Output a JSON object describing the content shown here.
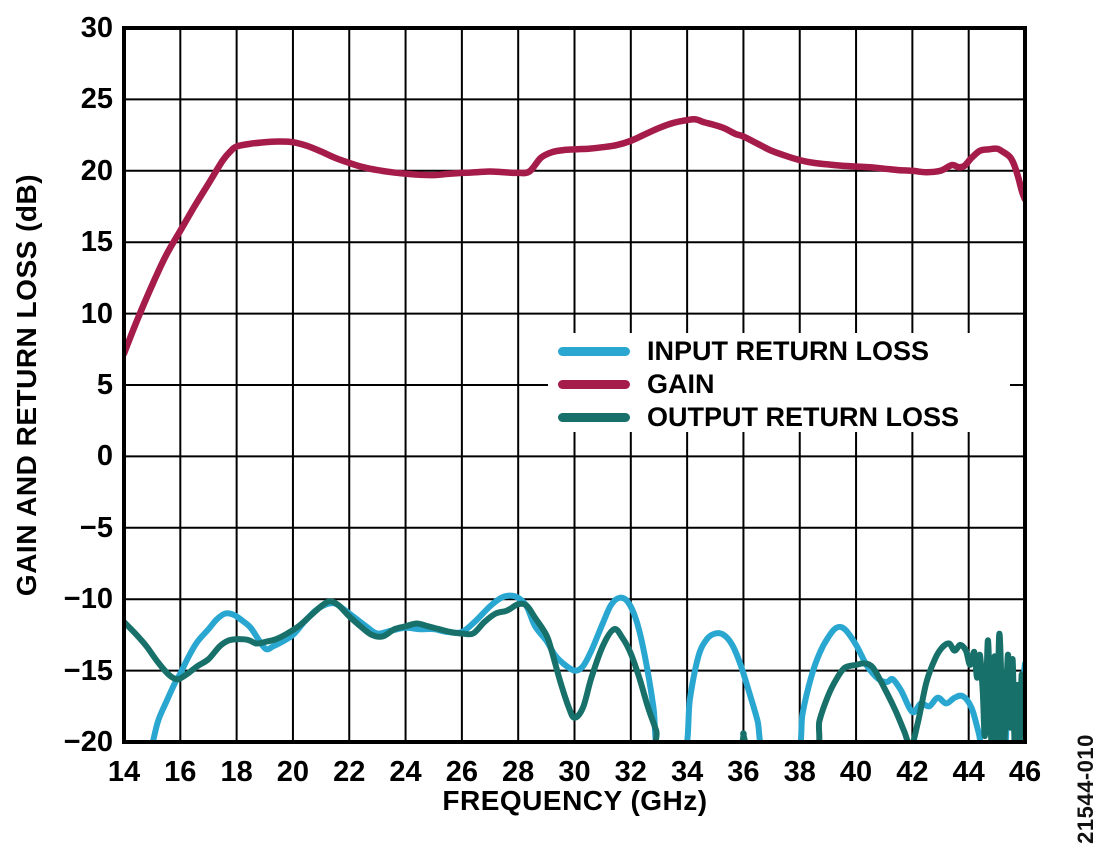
{
  "watermark_label": "21544-010",
  "chart_data": {
    "type": "line",
    "title": "",
    "xlabel": "FREQUENCY (GHz)",
    "ylabel": "GAIN AND RETURN LOSS (dB)",
    "xlim": [
      14,
      46
    ],
    "ylim": [
      -20,
      30
    ],
    "xticks": [
      14,
      16,
      18,
      20,
      22,
      24,
      26,
      28,
      30,
      32,
      34,
      36,
      38,
      40,
      42,
      44,
      46
    ],
    "yticks": [
      30,
      25,
      20,
      15,
      10,
      5,
      0,
      -5,
      -10,
      -15,
      -20
    ],
    "grid": true,
    "grid_color": "#000000",
    "legend": {
      "position": "center-right",
      "items": [
        "INPUT RETURN LOSS",
        "GAIN",
        "OUTPUT RETURN LOSS"
      ]
    },
    "series": [
      {
        "name": "INPUT RETURN LOSS",
        "color": "#2AA7D0",
        "points": [
          [
            14.95,
            -20.7
          ],
          [
            15.2,
            -18.6
          ],
          [
            15.5,
            -17.2
          ],
          [
            15.8,
            -15.9
          ],
          [
            16,
            -15.2
          ],
          [
            16.3,
            -14.0
          ],
          [
            16.6,
            -13.0
          ],
          [
            17,
            -12.1
          ],
          [
            17.3,
            -11.4
          ],
          [
            17.6,
            -11.0
          ],
          [
            17.9,
            -11.1
          ],
          [
            18.2,
            -11.5
          ],
          [
            18.5,
            -12.0
          ],
          [
            18.8,
            -12.9
          ],
          [
            19.05,
            -13.5
          ],
          [
            19.3,
            -13.3
          ],
          [
            19.6,
            -13.0
          ],
          [
            20,
            -12.5
          ],
          [
            20.4,
            -11.6
          ],
          [
            20.8,
            -10.8
          ],
          [
            21.2,
            -10.35
          ],
          [
            21.5,
            -10.3
          ],
          [
            21.8,
            -10.7
          ],
          [
            22.2,
            -11.3
          ],
          [
            22.6,
            -11.9
          ],
          [
            23,
            -12.4
          ],
          [
            23.5,
            -12.2
          ],
          [
            24,
            -12.0
          ],
          [
            24.5,
            -12.1
          ],
          [
            25,
            -12.1
          ],
          [
            25.5,
            -12.3
          ],
          [
            26,
            -12.3
          ],
          [
            26.5,
            -11.5
          ],
          [
            27,
            -10.5
          ],
          [
            27.4,
            -9.9
          ],
          [
            27.7,
            -9.75
          ],
          [
            28,
            -9.9
          ],
          [
            28.3,
            -10.5
          ],
          [
            28.6,
            -11.9
          ],
          [
            29,
            -12.9
          ],
          [
            29.3,
            -13.9
          ],
          [
            29.6,
            -14.5
          ],
          [
            30,
            -15.0
          ],
          [
            30.3,
            -14.7
          ],
          [
            30.6,
            -13.6
          ],
          [
            31,
            -11.7
          ],
          [
            31.3,
            -10.4
          ],
          [
            31.6,
            -9.9
          ],
          [
            31.9,
            -10.2
          ],
          [
            32.2,
            -11.5
          ],
          [
            32.5,
            -14.0
          ],
          [
            32.8,
            -17.5
          ],
          [
            33,
            -20.7
          ],
          [
            33.9,
            -20.7
          ],
          [
            34.1,
            -17.0
          ],
          [
            34.4,
            -14.0
          ],
          [
            34.7,
            -12.8
          ],
          [
            35,
            -12.4
          ],
          [
            35.3,
            -12.5
          ],
          [
            35.6,
            -13.2
          ],
          [
            35.9,
            -14.6
          ],
          [
            36.2,
            -16.5
          ],
          [
            36.5,
            -18.5
          ],
          [
            36.75,
            -20.7
          ],
          [
            37.9,
            -20.7
          ],
          [
            38.1,
            -18.0
          ],
          [
            38.4,
            -15.5
          ],
          [
            38.7,
            -13.8
          ],
          [
            39,
            -12.7
          ],
          [
            39.3,
            -12.0
          ],
          [
            39.6,
            -12.1
          ],
          [
            40,
            -13.2
          ],
          [
            40.4,
            -14.7
          ],
          [
            40.8,
            -15.6
          ],
          [
            41.1,
            -15.8
          ],
          [
            41.3,
            -15.6
          ],
          [
            41.6,
            -16.4
          ],
          [
            42,
            -17.9
          ],
          [
            42.3,
            -17.3
          ],
          [
            42.6,
            -17.5
          ],
          [
            42.9,
            -16.9
          ],
          [
            43.2,
            -17.3
          ],
          [
            43.5,
            -16.9
          ],
          [
            43.8,
            -16.8
          ],
          [
            44.1,
            -17.6
          ],
          [
            44.35,
            -19.3
          ],
          [
            44.55,
            -20.7
          ],
          [
            45.25,
            -20.7
          ],
          [
            45.35,
            -17.3
          ],
          [
            45.5,
            -16.9
          ],
          [
            45.65,
            -18.0
          ],
          [
            45.8,
            -18.6
          ],
          [
            45.9,
            -16.3
          ],
          [
            46,
            -14.5
          ]
        ]
      },
      {
        "name": "GAIN",
        "color": "#A51C4B",
        "points": [
          [
            14,
            7.2
          ],
          [
            14.5,
            9.7
          ],
          [
            15,
            12.0
          ],
          [
            15.5,
            14.1
          ],
          [
            16,
            15.8
          ],
          [
            16.5,
            17.5
          ],
          [
            17,
            19.1
          ],
          [
            17.5,
            20.7
          ],
          [
            17.8,
            21.4
          ],
          [
            18,
            21.7
          ],
          [
            18.5,
            21.9
          ],
          [
            19,
            22.0
          ],
          [
            19.5,
            22.05
          ],
          [
            20,
            22.0
          ],
          [
            20.5,
            21.75
          ],
          [
            21,
            21.35
          ],
          [
            21.5,
            20.9
          ],
          [
            22,
            20.55
          ],
          [
            22.5,
            20.25
          ],
          [
            23,
            20.05
          ],
          [
            23.5,
            19.9
          ],
          [
            24,
            19.8
          ],
          [
            24.5,
            19.72
          ],
          [
            25,
            19.7
          ],
          [
            25.5,
            19.78
          ],
          [
            26,
            19.85
          ],
          [
            26.5,
            19.9
          ],
          [
            27,
            19.95
          ],
          [
            27.5,
            19.9
          ],
          [
            28,
            19.85
          ],
          [
            28.4,
            19.95
          ],
          [
            28.8,
            20.9
          ],
          [
            29.2,
            21.3
          ],
          [
            29.6,
            21.45
          ],
          [
            30,
            21.5
          ],
          [
            30.5,
            21.55
          ],
          [
            31,
            21.65
          ],
          [
            31.5,
            21.8
          ],
          [
            32,
            22.1
          ],
          [
            32.5,
            22.55
          ],
          [
            33,
            23.0
          ],
          [
            33.5,
            23.35
          ],
          [
            34,
            23.55
          ],
          [
            34.3,
            23.6
          ],
          [
            34.6,
            23.4
          ],
          [
            34.9,
            23.25
          ],
          [
            35.3,
            23.0
          ],
          [
            35.7,
            22.6
          ],
          [
            36,
            22.4
          ],
          [
            36.5,
            21.9
          ],
          [
            37,
            21.4
          ],
          [
            37.5,
            21.05
          ],
          [
            38,
            20.75
          ],
          [
            38.5,
            20.55
          ],
          [
            39,
            20.45
          ],
          [
            39.5,
            20.35
          ],
          [
            40,
            20.3
          ],
          [
            40.5,
            20.25
          ],
          [
            41,
            20.15
          ],
          [
            41.5,
            20.05
          ],
          [
            42,
            20.0
          ],
          [
            42.5,
            19.9
          ],
          [
            43,
            20.0
          ],
          [
            43.4,
            20.4
          ],
          [
            43.65,
            20.25
          ],
          [
            43.85,
            20.35
          ],
          [
            44.1,
            20.9
          ],
          [
            44.4,
            21.4
          ],
          [
            44.7,
            21.5
          ],
          [
            45,
            21.55
          ],
          [
            45.2,
            21.35
          ],
          [
            45.45,
            21.0
          ],
          [
            45.6,
            20.5
          ],
          [
            45.75,
            19.6
          ],
          [
            45.9,
            18.5
          ],
          [
            46,
            18.0
          ]
        ]
      },
      {
        "name": "OUTPUT RETURN LOSS",
        "color": "#177069",
        "points": [
          [
            14,
            -11.6
          ],
          [
            14.4,
            -12.4
          ],
          [
            14.8,
            -13.3
          ],
          [
            15.2,
            -14.4
          ],
          [
            15.6,
            -15.3
          ],
          [
            15.9,
            -15.6
          ],
          [
            16.2,
            -15.3
          ],
          [
            16.6,
            -14.7
          ],
          [
            17,
            -14.2
          ],
          [
            17.4,
            -13.3
          ],
          [
            17.7,
            -12.9
          ],
          [
            18,
            -12.8
          ],
          [
            18.4,
            -12.85
          ],
          [
            18.7,
            -13.1
          ],
          [
            19,
            -13.0
          ],
          [
            19.4,
            -12.8
          ],
          [
            19.8,
            -12.4
          ],
          [
            20.2,
            -11.9
          ],
          [
            20.6,
            -11.2
          ],
          [
            21,
            -10.5
          ],
          [
            21.3,
            -10.15
          ],
          [
            21.6,
            -10.4
          ],
          [
            22,
            -11.2
          ],
          [
            22.4,
            -11.9
          ],
          [
            22.8,
            -12.5
          ],
          [
            23.2,
            -12.6
          ],
          [
            23.6,
            -12.1
          ],
          [
            24,
            -11.9
          ],
          [
            24.4,
            -11.7
          ],
          [
            24.8,
            -11.9
          ],
          [
            25.2,
            -12.1
          ],
          [
            25.6,
            -12.3
          ],
          [
            26,
            -12.4
          ],
          [
            26.4,
            -12.4
          ],
          [
            26.8,
            -11.6
          ],
          [
            27.2,
            -11.0
          ],
          [
            27.6,
            -10.8
          ],
          [
            28,
            -10.35
          ],
          [
            28.3,
            -10.45
          ],
          [
            28.6,
            -11.3
          ],
          [
            29,
            -12.5
          ],
          [
            29.2,
            -13.7
          ],
          [
            29.5,
            -15.8
          ],
          [
            29.8,
            -17.6
          ],
          [
            30,
            -18.3
          ],
          [
            30.3,
            -17.6
          ],
          [
            30.6,
            -15.5
          ],
          [
            31,
            -13.3
          ],
          [
            31.4,
            -12.1
          ],
          [
            31.7,
            -12.7
          ],
          [
            32,
            -13.8
          ],
          [
            32.3,
            -15.5
          ],
          [
            32.6,
            -17.5
          ],
          [
            32.9,
            -19.2
          ],
          [
            33.15,
            -20.7
          ],
          [
            35.8,
            -20.7
          ],
          [
            36,
            -19.4
          ],
          [
            36.2,
            -20.7
          ],
          [
            38.45,
            -20.7
          ],
          [
            38.7,
            -18.5
          ],
          [
            39,
            -16.8
          ],
          [
            39.3,
            -15.6
          ],
          [
            39.6,
            -14.8
          ],
          [
            40,
            -14.6
          ],
          [
            40.3,
            -14.5
          ],
          [
            40.6,
            -14.8
          ],
          [
            41,
            -16.2
          ],
          [
            41.4,
            -17.8
          ],
          [
            41.7,
            -19.2
          ],
          [
            41.95,
            -20.3
          ],
          [
            42.2,
            -18.6
          ],
          [
            42.5,
            -15.8
          ],
          [
            42.8,
            -14.2
          ],
          [
            43.05,
            -13.4
          ],
          [
            43.3,
            -13.1
          ],
          [
            43.5,
            -13.6
          ],
          [
            43.7,
            -13.2
          ],
          [
            43.9,
            -13.6
          ],
          [
            44.05,
            -14.6
          ],
          [
            44.2,
            -13.7
          ],
          [
            44.3,
            -15.5
          ],
          [
            44.4,
            -13.9
          ],
          [
            44.5,
            -16.5
          ],
          [
            44.58,
            -19.5
          ],
          [
            44.68,
            -12.9
          ],
          [
            44.76,
            -17.5
          ],
          [
            44.84,
            -20.7
          ],
          [
            44.92,
            -14.0
          ],
          [
            45,
            -20.7
          ],
          [
            45.08,
            -12.6
          ],
          [
            45.16,
            -15.5
          ],
          [
            45.24,
            -20.7
          ],
          [
            45.32,
            -17.5
          ],
          [
            45.4,
            -13.9
          ],
          [
            45.48,
            -19.0
          ],
          [
            45.56,
            -14.2
          ],
          [
            45.64,
            -20.7
          ],
          [
            45.72,
            -16.0
          ],
          [
            45.8,
            -20.7
          ],
          [
            45.88,
            -15.3
          ],
          [
            45.94,
            -18.5
          ],
          [
            46,
            -16.8
          ]
        ]
      }
    ]
  }
}
